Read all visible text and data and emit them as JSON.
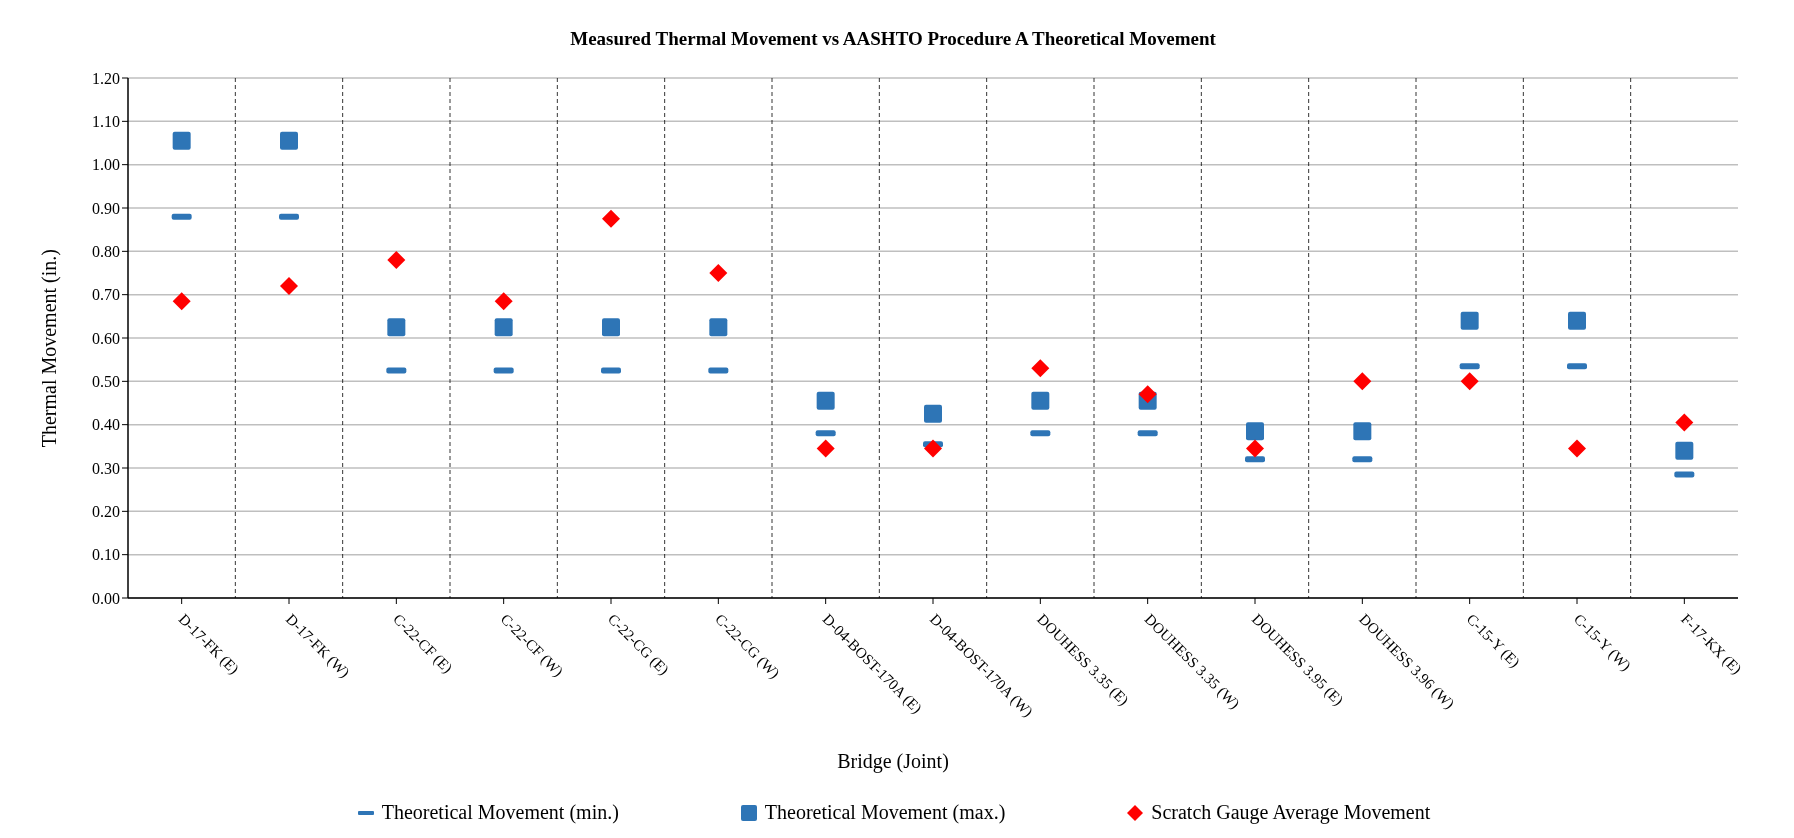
{
  "chart_data": {
    "type": "scatter",
    "title": "Measured Thermal Movement vs AASHTO Procedure A Theoretical Movement",
    "xlabel": "Bridge  (Joint)",
    "ylabel": "Thermal Movement (in.)",
    "categories": [
      "D-17-FK (E)",
      "D-17-FK (W)",
      "C-22-CF (E)",
      "C-22-CF  (W)",
      "C-22-CG (E)",
      "C-22-CG  (W)",
      "D-04-BOST-170A (E)",
      "D-04-BOST-170A  (W)",
      "DOUHESS 3.35 (E)",
      "DOUHESS 3.35 (W)",
      "DOUHESS 3.95 (E)",
      "DOUHESS 3.96 (W)",
      "C-15-Y (E)",
      "C-15-Y (W)",
      "F-17-KX (E)"
    ],
    "series": [
      {
        "name": "Theoretical Movement (min.)",
        "color": "#2e75b6",
        "values": [
          0.88,
          0.88,
          0.525,
          0.525,
          0.525,
          0.525,
          0.38,
          0.355,
          0.38,
          0.38,
          0.32,
          0.32,
          0.535,
          0.535,
          0.285
        ]
      },
      {
        "name": "Theoretical Movement (max.)",
        "color": "#2e75b6",
        "marker": "square",
        "values": [
          1.055,
          1.055,
          0.625,
          0.625,
          0.625,
          0.625,
          0.455,
          0.425,
          0.455,
          0.455,
          0.385,
          0.385,
          0.64,
          0.64,
          0.34
        ]
      },
      {
        "name": "Scratch Gauge Average Movement",
        "color": "#ff0000",
        "marker": "diamond",
        "values": [
          0.685,
          0.72,
          0.78,
          0.685,
          0.875,
          0.75,
          0.345,
          0.345,
          0.53,
          0.47,
          0.345,
          0.5,
          0.5,
          0.345,
          0.405
        ]
      }
    ],
    "ylim": [
      0,
      1.2
    ],
    "yticks": [
      {
        "value": 0,
        "label": "0.00"
      },
      {
        "value": 0.1,
        "label": "0.10"
      },
      {
        "value": 0.2,
        "label": "0.20"
      },
      {
        "value": 0.3,
        "label": "0.30"
      },
      {
        "value": 0.4,
        "label": "0.40"
      },
      {
        "value": 0.5,
        "label": "0.50"
      },
      {
        "value": 0.6,
        "label": "0.60"
      },
      {
        "value": 0.7,
        "label": "0.70"
      },
      {
        "value": 0.8,
        "label": "0.80"
      },
      {
        "value": 0.9,
        "label": "0.90"
      },
      {
        "value": 1,
        "label": "1.00"
      },
      {
        "value": 1.1,
        "label": "1.10"
      },
      {
        "value": 1.2,
        "label": "1.20"
      }
    ],
    "grid": true,
    "legend": "bottom"
  }
}
